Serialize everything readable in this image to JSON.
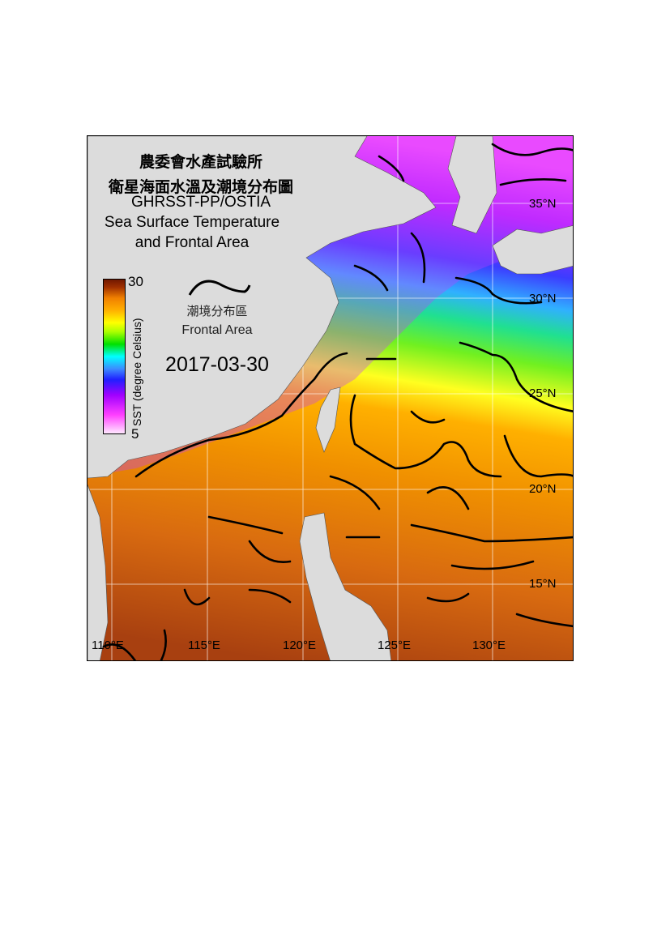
{
  "title": {
    "line1": "農委會水產試驗所",
    "line2": "衛星海面水溫及潮境分布圖",
    "line3": "GHRSST-PP/OSTIA",
    "line4": "Sea Surface Temperature",
    "line5": "and Frontal Area"
  },
  "legend": {
    "front_label_zh": "潮境分布區",
    "front_label_en": "Frontal Area",
    "colorbar_title": "SST (degree Celsius)",
    "colorbar_max": "30",
    "colorbar_min": "5",
    "colorbar_colors": [
      "#ffe8ff",
      "#ff40ff",
      "#a000ff",
      "#2020ff",
      "#3c8cff",
      "#00ffff",
      "#00e000",
      "#aaff00",
      "#ffff00",
      "#ffb000",
      "#f08000",
      "#a03000",
      "#701800"
    ]
  },
  "date": "2017-03-30",
  "lat_labels": [
    "35°N",
    "30°N",
    "25°N",
    "20°N",
    "15°N"
  ],
  "lon_labels": [
    "110°E",
    "115°E",
    "120°E",
    "125°E",
    "130°E"
  ],
  "colors": {
    "land": "#dcdcdc",
    "front": "#000000",
    "grid": "#ffffff"
  }
}
